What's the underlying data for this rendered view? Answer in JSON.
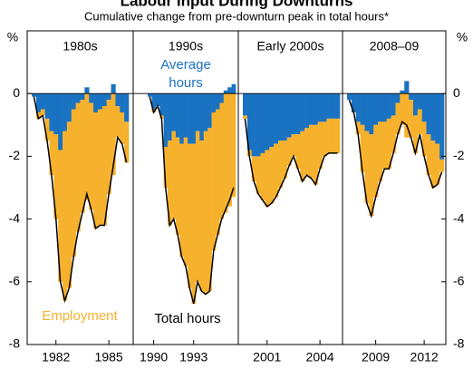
{
  "chart_data": {
    "type": "bar",
    "title": "Labour Input During Downturns",
    "subtitle": "Cumulative change from pre-downturn peak in total hours*",
    "y_unit": "%",
    "ylim": [
      -8,
      2
    ],
    "yticks": [
      -8,
      -6,
      -4,
      -2,
      0
    ],
    "series": [
      {
        "name": "Employment",
        "color": "#f6b12d",
        "kind": "bar"
      },
      {
        "name": "Average hours",
        "color": "#1a72c2",
        "kind": "bar"
      },
      {
        "name": "Total hours",
        "color": "#000000",
        "kind": "line"
      }
    ],
    "panels": [
      {
        "title": "1980s",
        "categories": [
          null,
          null,
          null,
          null,
          null,
          "1982",
          null,
          null,
          null,
          null,
          null,
          null,
          null,
          null,
          null,
          null,
          null,
          "1985",
          null,
          null,
          null,
          null
        ],
        "values": [
          [
            0,
            -0.2,
            -0.2,
            -0.7,
            -1.4,
            -2.7,
            -4.2,
            -5.4,
            -5.3,
            -4.7,
            -4.1,
            -3.6,
            -3.4,
            -3.4,
            -3.7,
            -3.7,
            -3.8,
            -3.0,
            -2.6,
            -1.0,
            -1.0,
            -1.3
          ],
          [
            -0.1,
            -0.6,
            -0.5,
            -0.8,
            -1.2,
            -1.3,
            -1.8,
            -1.2,
            -0.9,
            -0.5,
            -0.3,
            -0.2,
            0.2,
            -0.3,
            -0.6,
            -0.5,
            -0.4,
            -0.2,
            0.3,
            -0.4,
            -0.6,
            -0.9
          ],
          [
            -0.1,
            -0.8,
            -0.7,
            -1.5,
            -2.6,
            -4.0,
            -6.0,
            -6.6,
            -6.2,
            -5.2,
            -4.4,
            -3.8,
            -3.2,
            -3.7,
            -4.3,
            -4.2,
            -4.2,
            -3.2,
            -2.3,
            -1.4,
            -1.6,
            -2.2
          ]
        ]
      },
      {
        "title": "1990s",
        "categories": [
          null,
          "1990",
          null,
          null,
          null,
          null,
          null,
          null,
          null,
          null,
          null,
          "1993",
          null,
          null,
          null,
          null,
          null,
          null,
          null,
          null,
          null,
          null
        ],
        "values": [
          [
            0,
            -0.1,
            0,
            -0.1,
            -1.3,
            -2.7,
            -2.8,
            -3.1,
            -3.6,
            -4.1,
            -4.6,
            -5.1,
            -4.8,
            -4.8,
            -5.2,
            -5.2,
            -4.4,
            -4.0,
            -3.7,
            -3.8,
            -3.6,
            -3.3
          ],
          [
            -0.1,
            -0.5,
            -0.4,
            -0.7,
            -1.7,
            -1.5,
            -1.2,
            -1.4,
            -1.6,
            -1.4,
            -1.6,
            -1.6,
            -1.2,
            -1.5,
            -1.2,
            -1.1,
            -0.6,
            -0.5,
            -0.3,
            0.1,
            0.2,
            0.3
          ],
          [
            -0.1,
            -0.6,
            -0.4,
            -0.8,
            -3.0,
            -4.2,
            -4.0,
            -4.5,
            -5.2,
            -5.5,
            -6.2,
            -6.7,
            -6.0,
            -6.3,
            -6.4,
            -6.3,
            -5.0,
            -4.5,
            -4.0,
            -3.7,
            -3.4,
            -3.0
          ]
        ]
      },
      {
        "title": "Early 2000s",
        "categories": [
          null,
          null,
          null,
          null,
          null,
          "2001",
          null,
          null,
          null,
          null,
          null,
          null,
          null,
          null,
          null,
          null,
          null,
          "2004",
          null,
          null,
          null,
          null
        ],
        "values": [
          [
            -0.1,
            -0.2,
            -0.8,
            -1.2,
            -1.5,
            -1.8,
            -1.8,
            -1.7,
            -1.5,
            -1.2,
            -0.9,
            -0.7,
            -1.1,
            -1.6,
            -1.5,
            -1.7,
            -1.9,
            -1.5,
            -1.1,
            -1.1,
            -1.1,
            -1.1
          ],
          [
            -0.7,
            -1.8,
            -2.0,
            -2.0,
            -1.9,
            -1.8,
            -1.7,
            -1.6,
            -1.5,
            -1.5,
            -1.4,
            -1.3,
            -1.3,
            -1.2,
            -1.1,
            -1.0,
            -1.0,
            -0.9,
            -0.9,
            -0.8,
            -0.8,
            -0.8
          ],
          [
            -0.8,
            -2.0,
            -2.8,
            -3.2,
            -3.4,
            -3.6,
            -3.5,
            -3.3,
            -3.0,
            -2.7,
            -2.3,
            -2.0,
            -2.4,
            -2.8,
            -2.6,
            -2.7,
            -2.9,
            -2.4,
            -2.0,
            -1.9,
            -1.9,
            -1.9
          ]
        ]
      },
      {
        "title": "2008–09",
        "categories": [
          null,
          null,
          null,
          null,
          null,
          null,
          "2009",
          null,
          null,
          null,
          null,
          null,
          null,
          null,
          null,
          null,
          null,
          "2012",
          null,
          null,
          null,
          null
        ],
        "values": [
          [
            0,
            0,
            -0.4,
            -1.5,
            -2.3,
            -2.6,
            -2.3,
            -1.9,
            -1.5,
            -1.6,
            -1.2,
            -1.0,
            -1.0,
            -1.4,
            -1.2,
            -1.2,
            -0.8,
            -1.1,
            -1.3,
            -1.5,
            -1.3,
            -0.4
          ],
          [
            -0.2,
            -0.6,
            -0.9,
            -1.0,
            -1.2,
            -1.3,
            -1.0,
            -0.9,
            -0.9,
            -0.8,
            -0.7,
            -0.3,
            0.1,
            0.4,
            -0.2,
            -0.7,
            -0.5,
            -0.9,
            -1.3,
            -1.5,
            -1.6,
            -2.1
          ],
          [
            -0.2,
            -0.6,
            -1.3,
            -2.5,
            -3.5,
            -3.9,
            -3.3,
            -2.8,
            -2.4,
            -2.4,
            -1.9,
            -1.3,
            -0.9,
            -1.0,
            -1.4,
            -1.9,
            -1.3,
            -2.0,
            -2.6,
            -3.0,
            -2.9,
            -2.5
          ]
        ]
      }
    ]
  }
}
